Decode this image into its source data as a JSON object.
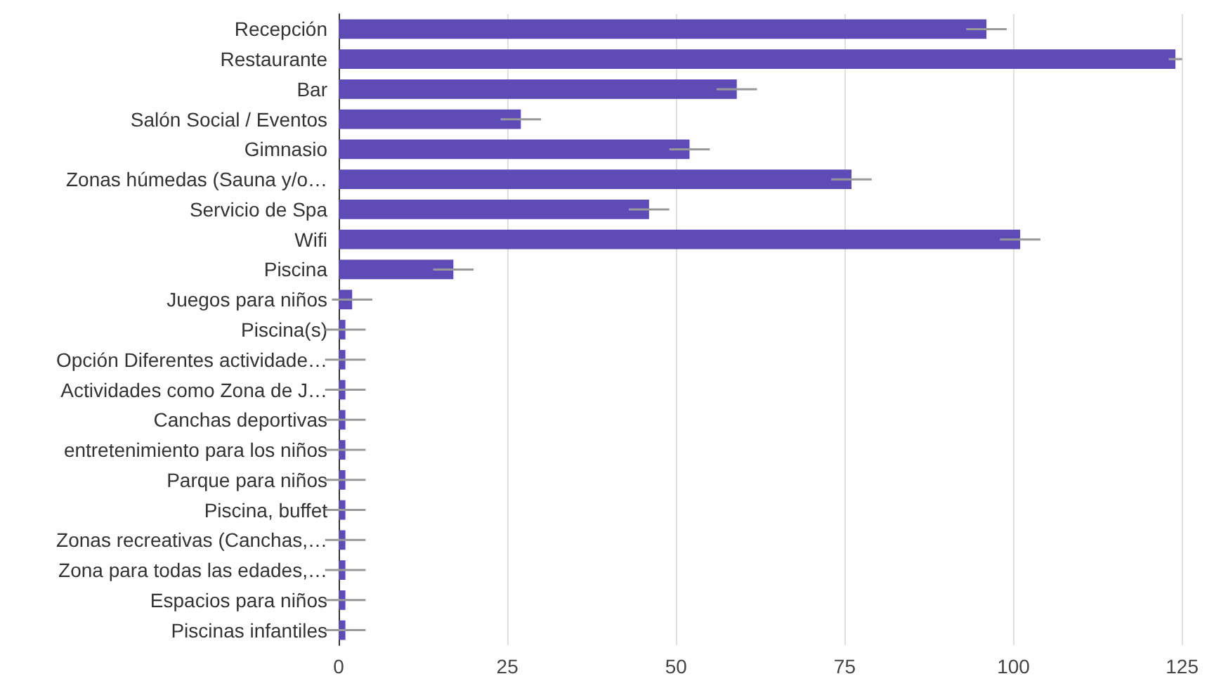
{
  "chart_data": {
    "type": "bar",
    "orientation": "horizontal",
    "categories": [
      "Recepción",
      "Restaurante",
      "Bar",
      "Salón Social / Eventos",
      "Gimnasio",
      "Zonas húmedas (Sauna y/o…",
      "Servicio de Spa",
      "Wifi",
      "Piscina",
      "Juegos para niños",
      "Piscina(s)",
      "Opción Diferentes actividade…",
      "Actividades como Zona de J…",
      "Canchas deportivas",
      "entretenimiento para los niños",
      "Parque para niños",
      "Piscina, buffet",
      "Zonas recreativas (Canchas,…",
      "Zona para todas las edades,…",
      "Espacios para niños",
      "Piscinas infantiles"
    ],
    "values": [
      96,
      124,
      59,
      27,
      52,
      76,
      46,
      101,
      17,
      2,
      1,
      1,
      1,
      1,
      1,
      1,
      1,
      1,
      1,
      1,
      1
    ],
    "errors": [
      3,
      1,
      3,
      3,
      3,
      3,
      3,
      3,
      3,
      3,
      3,
      3,
      3,
      3,
      3,
      3,
      3,
      3,
      3,
      3,
      3
    ],
    "color": "#5e4bb6",
    "xlim": [
      0,
      125
    ],
    "xticks": [
      0,
      25,
      50,
      75,
      100,
      125
    ],
    "grid": "x"
  }
}
